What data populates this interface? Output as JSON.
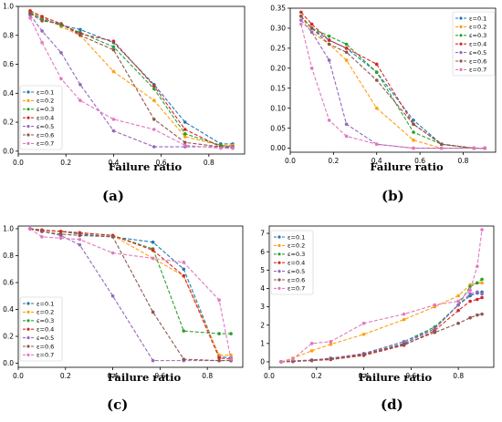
{
  "xlabel": "Failure ratio",
  "panel_labels": [
    "(a)",
    "(b)",
    "(c)",
    "(d)"
  ],
  "legend": [
    "ε=0.1",
    "ε=0.2",
    "ε=0.3",
    "ε=0.4",
    "ε=0.5",
    "ε=0.6",
    "ε=0.7"
  ],
  "series_colors": [
    "#1f77b4",
    "#ff9f0e",
    "#2ca02c",
    "#d62728",
    "#9467bd",
    "#8c564b",
    "#e377c2"
  ],
  "chart_data": [
    {
      "type": "line",
      "xlabel": "Failure ratio",
      "xlim": [
        0,
        0.95
      ],
      "ylim": [
        -0.02,
        1.0
      ],
      "xticks": [
        0.0,
        0.2,
        0.4,
        0.6,
        0.8
      ],
      "yticks": [
        0.0,
        0.2,
        0.4,
        0.6,
        0.8,
        1.0
      ],
      "xtick_labels": [
        "0.0",
        "0.2",
        "0.4",
        "0.6",
        "0.8"
      ],
      "ytick_labels": [
        "0.0",
        "0.2",
        "0.4",
        "0.6",
        "0.8",
        "1.0"
      ],
      "legend_position": "lower-left",
      "x": [
        0.05,
        0.1,
        0.18,
        0.26,
        0.4,
        0.57,
        0.7,
        0.85,
        0.9
      ],
      "series": [
        {
          "name": "ε=0.1",
          "values": [
            0.95,
            0.92,
            0.87,
            0.84,
            0.75,
            0.46,
            0.2,
            0.05,
            0.05
          ]
        },
        {
          "name": "ε=0.2",
          "values": [
            0.96,
            0.93,
            0.86,
            0.8,
            0.55,
            0.35,
            0.1,
            0.04,
            0.04
          ]
        },
        {
          "name": "ε=0.3",
          "values": [
            0.96,
            0.91,
            0.87,
            0.82,
            0.72,
            0.43,
            0.12,
            0.04,
            0.03
          ]
        },
        {
          "name": "ε=0.4",
          "values": [
            0.97,
            0.93,
            0.88,
            0.81,
            0.76,
            0.45,
            0.15,
            0.03,
            0.03
          ]
        },
        {
          "name": "ε=0.5",
          "values": [
            0.94,
            0.83,
            0.68,
            0.46,
            0.14,
            0.03,
            0.03,
            0.03,
            0.03
          ]
        },
        {
          "name": "ε=0.6",
          "values": [
            0.95,
            0.9,
            0.88,
            0.8,
            0.7,
            0.22,
            0.06,
            0.03,
            0.02
          ]
        },
        {
          "name": "ε=0.7",
          "values": [
            0.92,
            0.75,
            0.5,
            0.35,
            0.22,
            0.15,
            0.04,
            0.02,
            0.02
          ]
        }
      ]
    },
    {
      "type": "line",
      "xlabel": "Failure ratio",
      "xlim": [
        0,
        0.95
      ],
      "ylim": [
        -0.01,
        0.35
      ],
      "xticks": [
        0.0,
        0.2,
        0.4,
        0.6,
        0.8
      ],
      "yticks": [
        0.0,
        0.05,
        0.1,
        0.15,
        0.2,
        0.25,
        0.3,
        0.35
      ],
      "xtick_labels": [
        "0.0",
        "0.2",
        "0.4",
        "0.6",
        "0.8"
      ],
      "ytick_labels": [
        "0.00",
        "0.05",
        "0.10",
        "0.15",
        "0.20",
        "0.25",
        "0.30",
        "0.35"
      ],
      "legend_position": "upper-right",
      "x": [
        0.05,
        0.1,
        0.18,
        0.26,
        0.4,
        0.57,
        0.7,
        0.85,
        0.9
      ],
      "series": [
        {
          "name": "ε=0.1",
          "values": [
            0.33,
            0.3,
            0.27,
            0.25,
            0.19,
            0.07,
            0.01,
            0.0,
            0.0
          ]
        },
        {
          "name": "ε=0.2",
          "values": [
            0.33,
            0.29,
            0.26,
            0.22,
            0.1,
            0.02,
            0.0,
            0.0,
            0.0
          ]
        },
        {
          "name": "ε=0.3",
          "values": [
            0.33,
            0.3,
            0.28,
            0.26,
            0.19,
            0.04,
            0.01,
            0.0,
            0.0
          ]
        },
        {
          "name": "ε=0.4",
          "values": [
            0.34,
            0.31,
            0.27,
            0.25,
            0.21,
            0.06,
            0.01,
            0.0,
            0.0
          ]
        },
        {
          "name": "ε=0.5",
          "values": [
            0.32,
            0.29,
            0.22,
            0.06,
            0.01,
            0.0,
            0.0,
            0.0,
            0.0
          ]
        },
        {
          "name": "ε=0.6",
          "values": [
            0.33,
            0.3,
            0.26,
            0.24,
            0.17,
            0.06,
            0.01,
            0.0,
            0.0
          ]
        },
        {
          "name": "ε=0.7",
          "values": [
            0.31,
            0.2,
            0.07,
            0.03,
            0.01,
            0.0,
            0.0,
            0.0,
            0.0
          ]
        }
      ]
    },
    {
      "type": "line",
      "xlabel": "Failure ratio",
      "xlim": [
        0,
        0.95
      ],
      "ylim": [
        -0.03,
        1.02
      ],
      "xticks": [
        0.0,
        0.2,
        0.4,
        0.6,
        0.8
      ],
      "yticks": [
        0.0,
        0.2,
        0.4,
        0.6,
        0.8,
        1.0
      ],
      "xtick_labels": [
        "0.0",
        "0.2",
        "0.4",
        "0.6",
        "0.8"
      ],
      "ytick_labels": [
        "0.0",
        "0.2",
        "0.4",
        "0.6",
        "0.8",
        "1.0"
      ],
      "legend_position": "lower-left",
      "x": [
        0.05,
        0.1,
        0.18,
        0.26,
        0.4,
        0.57,
        0.7,
        0.85,
        0.9
      ],
      "series": [
        {
          "name": "ε=0.1",
          "values": [
            1.0,
            0.99,
            0.98,
            0.96,
            0.94,
            0.9,
            0.7,
            0.05,
            0.04
          ]
        },
        {
          "name": "ε=0.2",
          "values": [
            1.0,
            0.99,
            0.98,
            0.97,
            0.95,
            0.78,
            0.65,
            0.06,
            0.06
          ]
        },
        {
          "name": "ε=0.3",
          "values": [
            1.0,
            0.99,
            0.98,
            0.97,
            0.95,
            0.85,
            0.24,
            0.22,
            0.22
          ]
        },
        {
          "name": "ε=0.4",
          "values": [
            1.0,
            0.99,
            0.98,
            0.97,
            0.95,
            0.84,
            0.65,
            0.04,
            0.03
          ]
        },
        {
          "name": "ε=0.5",
          "values": [
            1.0,
            0.98,
            0.95,
            0.88,
            0.5,
            0.02,
            0.02,
            0.02,
            0.02
          ]
        },
        {
          "name": "ε=0.6",
          "values": [
            1.0,
            0.98,
            0.96,
            0.95,
            0.94,
            0.38,
            0.03,
            0.02,
            0.02
          ]
        },
        {
          "name": "ε=0.7",
          "values": [
            1.0,
            0.94,
            0.93,
            0.92,
            0.82,
            0.78,
            0.75,
            0.47,
            0.03
          ]
        }
      ]
    },
    {
      "type": "line",
      "xlabel": "Failure ratio",
      "xlim": [
        0,
        0.95
      ],
      "ylim": [
        -0.3,
        7.4
      ],
      "xticks": [
        0.0,
        0.2,
        0.4,
        0.6,
        0.8
      ],
      "yticks": [
        0,
        1,
        2,
        3,
        4,
        5,
        6,
        7
      ],
      "xtick_labels": [
        "0.0",
        "0.2",
        "0.4",
        "0.6",
        "0.8"
      ],
      "ytick_labels": [
        "0",
        "1",
        "2",
        "3",
        "4",
        "5",
        "6",
        "7"
      ],
      "legend_position": "upper-left",
      "x": [
        0.05,
        0.1,
        0.18,
        0.26,
        0.4,
        0.57,
        0.7,
        0.8,
        0.85,
        0.88,
        0.9
      ],
      "series": [
        {
          "name": "ε=0.1",
          "values": [
            0.0,
            0.03,
            0.08,
            0.15,
            0.4,
            1.0,
            1.8,
            3.1,
            3.6,
            3.75,
            3.8
          ]
        },
        {
          "name": "ε=0.2",
          "values": [
            0.0,
            0.2,
            0.6,
            0.95,
            1.5,
            2.3,
            3.0,
            3.6,
            4.2,
            4.3,
            4.3
          ]
        },
        {
          "name": "ε=0.3",
          "values": [
            0.0,
            0.03,
            0.08,
            0.15,
            0.45,
            1.1,
            1.9,
            3.1,
            4.1,
            4.3,
            4.5
          ]
        },
        {
          "name": "ε=0.4",
          "values": [
            0.0,
            0.02,
            0.07,
            0.12,
            0.35,
            0.9,
            1.7,
            2.8,
            3.3,
            3.4,
            3.5
          ]
        },
        {
          "name": "ε=0.5",
          "values": [
            0.0,
            0.05,
            0.1,
            0.2,
            0.45,
            1.1,
            1.8,
            3.1,
            3.7,
            3.8,
            3.7
          ]
        },
        {
          "name": "ε=0.6",
          "values": [
            0.0,
            0.03,
            0.08,
            0.15,
            0.4,
            0.95,
            1.6,
            2.1,
            2.4,
            2.55,
            2.6
          ]
        },
        {
          "name": "ε=0.7",
          "values": [
            0.0,
            0.15,
            1.0,
            1.1,
            2.1,
            2.6,
            3.1,
            3.3,
            3.9,
            5.2,
            7.2
          ]
        }
      ]
    }
  ]
}
